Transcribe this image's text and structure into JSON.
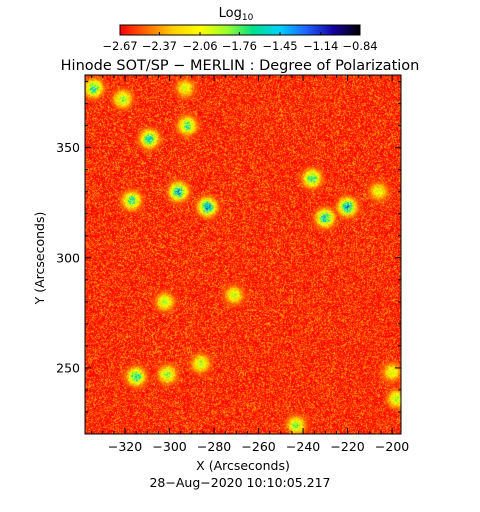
{
  "chart_data": {
    "type": "heatmap",
    "title": "Hinode SOT/SP − MERLIN : Degree of Polarization",
    "xlabel": "X (Arcseconds)",
    "ylabel": "Y (Arcseconds)",
    "footer": "28−Aug−2020 10:10:05.217",
    "xlim": [
      -338,
      -196
    ],
    "ylim": [
      220,
      383
    ],
    "x_ticks": [
      -320,
      -300,
      -280,
      -260,
      -240,
      -220,
      -200
    ],
    "x_tick_labels": [
      "−320",
      "−300",
      "−280",
      "−260",
      "−240",
      "−220",
      "−200"
    ],
    "y_ticks": [
      250,
      300,
      350
    ],
    "y_tick_labels": [
      "250",
      "300",
      "350"
    ],
    "colorbar": {
      "title_base": "Log",
      "title_sub": "10",
      "range": [
        -2.67,
        -0.84
      ],
      "colormap": [
        "#ff0000",
        "#ff6a00",
        "#ffd000",
        "#ffff00",
        "#9bff2a",
        "#00e08a",
        "#00d0ff",
        "#2060ff",
        "#1400a0",
        "#000000"
      ],
      "ticks": [
        -2.67,
        -2.37,
        -2.06,
        -1.76,
        -1.45,
        -1.14,
        -0.84
      ],
      "tick_labels": [
        "−2.67",
        "−2.37",
        "−2.06",
        "−1.76",
        "−1.45",
        "−1.14",
        "−0.84"
      ]
    },
    "high_polarization_patches": [
      {
        "x": -296,
        "y": 330,
        "value": -1.3
      },
      {
        "x": -283,
        "y": 323,
        "value": -1.25
      },
      {
        "x": -309,
        "y": 354,
        "value": -1.4
      },
      {
        "x": -292,
        "y": 360,
        "value": -1.55
      },
      {
        "x": -334,
        "y": 377,
        "value": -1.45
      },
      {
        "x": -321,
        "y": 372,
        "value": -1.7
      },
      {
        "x": -293,
        "y": 377,
        "value": -1.9
      },
      {
        "x": -230,
        "y": 318,
        "value": -1.35
      },
      {
        "x": -220,
        "y": 323,
        "value": -1.3
      },
      {
        "x": -236,
        "y": 336,
        "value": -1.5
      },
      {
        "x": -317,
        "y": 326,
        "value": -1.5
      },
      {
        "x": -315,
        "y": 246,
        "value": -1.45
      },
      {
        "x": -301,
        "y": 247,
        "value": -1.7
      },
      {
        "x": -286,
        "y": 252,
        "value": -1.8
      },
      {
        "x": -302,
        "y": 280,
        "value": -1.8
      },
      {
        "x": -271,
        "y": 283,
        "value": -1.85
      },
      {
        "x": -243,
        "y": 224,
        "value": -1.7
      },
      {
        "x": -200,
        "y": 248,
        "value": -1.9
      },
      {
        "x": -198,
        "y": 236,
        "value": -1.8
      },
      {
        "x": -206,
        "y": 330,
        "value": -1.95
      }
    ]
  }
}
